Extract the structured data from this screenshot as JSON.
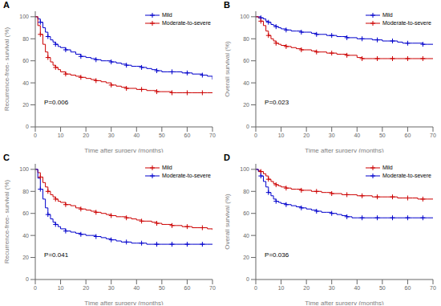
{
  "chart_data": [
    {
      "type": "step",
      "title": "A",
      "x_label": "Time after surgery (months)",
      "y_label": "Recurrence-free- survival (%)",
      "annotation": "P=0.006",
      "xlim": [
        0,
        70
      ],
      "ylim": [
        0,
        105
      ],
      "xticks": [
        0,
        10,
        20,
        30,
        40,
        50,
        60,
        70
      ],
      "yticks": [
        0,
        20,
        40,
        60,
        80,
        100
      ],
      "grid": false,
      "legend": "upper right",
      "x": [
        0,
        1,
        2,
        3,
        4,
        5,
        6,
        7,
        8,
        9,
        10,
        12,
        14,
        16,
        18,
        20,
        22,
        24,
        26,
        28,
        30,
        32,
        34,
        36,
        38,
        40,
        42,
        44,
        46,
        48,
        50,
        52,
        54,
        56,
        58,
        60,
        62,
        64,
        66,
        68,
        70
      ],
      "series": [
        {
          "name": "Mild",
          "color": "#0000CC",
          "marker": "plus",
          "values": [
            100,
            98,
            95,
            90,
            86,
            82,
            79,
            77,
            75,
            73,
            72,
            70,
            68,
            66,
            64,
            63,
            62,
            61,
            60,
            60,
            59,
            58,
            57,
            56,
            55,
            55,
            54,
            53,
            52,
            51,
            50,
            50,
            50,
            50,
            49,
            49,
            48,
            48,
            47,
            46,
            43
          ]
        },
        {
          "name": "Moderate-to-severe",
          "color": "#CC0000",
          "marker": "plus",
          "values": [
            100,
            92,
            84,
            75,
            68,
            63,
            59,
            56,
            54,
            52,
            50,
            48,
            47,
            46,
            45,
            44,
            43,
            42,
            41,
            40,
            38,
            37,
            36,
            35,
            35,
            34,
            34,
            33,
            33,
            32,
            32,
            32,
            31,
            31,
            31,
            31,
            31,
            31,
            31,
            31,
            31
          ]
        }
      ]
    },
    {
      "type": "step",
      "title": "B",
      "x_label": "Time after surgery (months)",
      "y_label": "Overall survival (%)",
      "annotation": "P=0.023",
      "xlim": [
        0,
        70
      ],
      "ylim": [
        0,
        105
      ],
      "xticks": [
        0,
        10,
        20,
        30,
        40,
        50,
        60,
        70
      ],
      "yticks": [
        0,
        20,
        40,
        60,
        80,
        100
      ],
      "grid": false,
      "legend": "upper right",
      "x": [
        0,
        1,
        2,
        3,
        4,
        5,
        6,
        7,
        8,
        9,
        10,
        12,
        14,
        16,
        18,
        20,
        22,
        24,
        26,
        28,
        30,
        32,
        34,
        36,
        38,
        40,
        42,
        44,
        46,
        48,
        50,
        52,
        54,
        56,
        58,
        60,
        62,
        64,
        66,
        68,
        70
      ],
      "series": [
        {
          "name": "Mild",
          "color": "#0000CC",
          "marker": "plus",
          "values": [
            100,
            100,
            99,
            98,
            96,
            95,
            93,
            92,
            91,
            90,
            89,
            88,
            87,
            87,
            86,
            86,
            85,
            84,
            84,
            83,
            83,
            82,
            82,
            81,
            81,
            80,
            80,
            80,
            79,
            79,
            78,
            78,
            78,
            77,
            76,
            76,
            76,
            76,
            75,
            75,
            75
          ]
        },
        {
          "name": "Moderate-to-severe",
          "color": "#CC0000",
          "marker": "plus",
          "values": [
            100,
            99,
            96,
            92,
            87,
            83,
            80,
            78,
            76,
            75,
            74,
            73,
            72,
            71,
            70,
            70,
            69,
            68,
            68,
            67,
            67,
            66,
            66,
            65,
            65,
            63,
            62,
            62,
            62,
            62,
            62,
            62,
            62,
            62,
            62,
            62,
            62,
            62,
            62,
            62,
            62
          ]
        }
      ]
    },
    {
      "type": "step",
      "title": "C",
      "x_label": "Time after surgery (months)",
      "y_label": "Recurrence-free- survival (%)",
      "annotation": "P=0.041",
      "xlim": [
        0,
        70
      ],
      "ylim": [
        0,
        105
      ],
      "xticks": [
        0,
        10,
        20,
        30,
        40,
        50,
        60,
        70
      ],
      "yticks": [
        0,
        20,
        40,
        60,
        80,
        100
      ],
      "grid": false,
      "legend": "upper right",
      "x": [
        0,
        1,
        2,
        3,
        4,
        5,
        6,
        7,
        8,
        9,
        10,
        12,
        14,
        16,
        18,
        20,
        22,
        24,
        26,
        28,
        30,
        32,
        34,
        36,
        38,
        40,
        42,
        44,
        46,
        48,
        50,
        52,
        54,
        56,
        58,
        60,
        62,
        64,
        66,
        68,
        70
      ],
      "series": [
        {
          "name": "Mild",
          "color": "#CC0000",
          "marker": "plus",
          "values": [
            100,
            97,
            93,
            88,
            84,
            80,
            77,
            75,
            73,
            71,
            70,
            68,
            67,
            65,
            64,
            63,
            62,
            61,
            60,
            59,
            58,
            57,
            57,
            56,
            55,
            54,
            53,
            53,
            52,
            51,
            50,
            50,
            49,
            49,
            48,
            48,
            47,
            47,
            47,
            46,
            45
          ]
        },
        {
          "name": "Moderate-to-severe",
          "color": "#0000CC",
          "marker": "plus",
          "values": [
            100,
            92,
            82,
            73,
            65,
            59,
            55,
            52,
            50,
            48,
            46,
            44,
            43,
            42,
            41,
            40,
            40,
            39,
            38,
            37,
            36,
            35,
            34,
            34,
            33,
            33,
            33,
            32,
            32,
            32,
            32,
            32,
            32,
            32,
            32,
            32,
            32,
            32,
            32,
            32,
            32
          ]
        }
      ]
    },
    {
      "type": "step",
      "title": "D",
      "x_label": "Time after surgery (months)",
      "y_label": "Overall survival (%)",
      "annotation": "P=0.036",
      "xlim": [
        0,
        70
      ],
      "ylim": [
        0,
        105
      ],
      "xticks": [
        0,
        10,
        20,
        30,
        40,
        50,
        60,
        70
      ],
      "yticks": [
        0,
        20,
        40,
        60,
        80,
        100
      ],
      "grid": false,
      "legend": "upper right",
      "x": [
        0,
        1,
        2,
        3,
        4,
        5,
        6,
        7,
        8,
        9,
        10,
        12,
        14,
        16,
        18,
        20,
        22,
        24,
        26,
        28,
        30,
        32,
        34,
        36,
        38,
        40,
        42,
        44,
        46,
        48,
        50,
        52,
        54,
        56,
        58,
        60,
        62,
        64,
        66,
        68,
        70
      ],
      "series": [
        {
          "name": "Mild",
          "color": "#CC0000",
          "marker": "plus",
          "values": [
            100,
            99,
            98,
            96,
            94,
            91,
            89,
            87,
            86,
            85,
            84,
            83,
            82,
            82,
            81,
            81,
            80,
            80,
            79,
            79,
            78,
            78,
            77,
            77,
            77,
            76,
            76,
            76,
            75,
            75,
            75,
            75,
            75,
            74,
            74,
            74,
            74,
            73,
            73,
            73,
            73
          ]
        },
        {
          "name": "Moderate-to-severe",
          "color": "#0000CC",
          "marker": "plus",
          "values": [
            100,
            98,
            94,
            89,
            84,
            79,
            76,
            73,
            71,
            70,
            69,
            68,
            67,
            66,
            65,
            64,
            63,
            62,
            61,
            61,
            60,
            59,
            58,
            57,
            56,
            56,
            56,
            56,
            56,
            56,
            56,
            56,
            56,
            56,
            56,
            56,
            56,
            56,
            56,
            56,
            56
          ]
        }
      ]
    }
  ]
}
